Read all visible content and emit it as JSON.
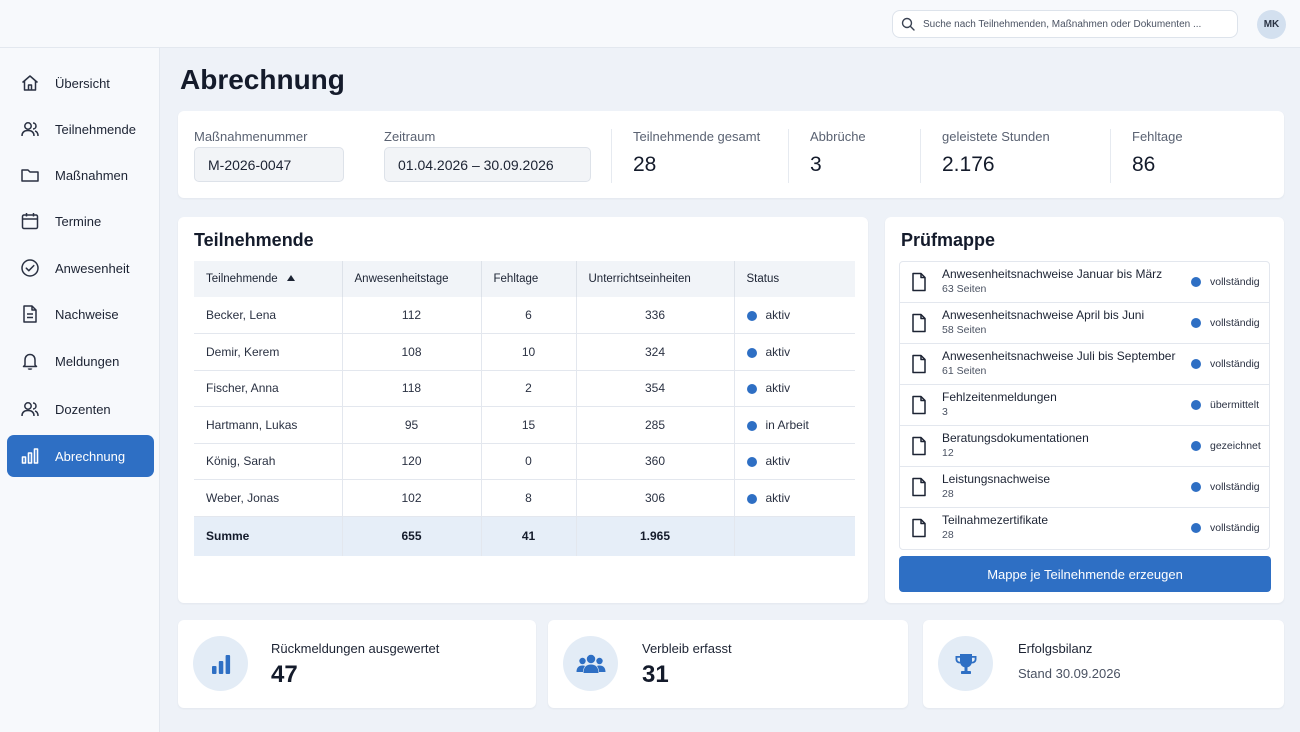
{
  "search": {
    "placeholder": "Suche nach Teilnehmenden, Maßnahmen oder Dokumenten ..."
  },
  "user": {
    "initials": "MK"
  },
  "sidebar": {
    "items": [
      {
        "label": "Übersicht",
        "icon": "home-icon"
      },
      {
        "label": "Teilnehmende",
        "icon": "users-icon"
      },
      {
        "label": "Maßnahmen",
        "icon": "folder-icon"
      },
      {
        "label": "Termine",
        "icon": "calendar-icon"
      },
      {
        "label": "Anwesenheit",
        "icon": "check-circle-icon"
      },
      {
        "label": "Nachweise",
        "icon": "document-icon"
      },
      {
        "label": "Meldungen",
        "icon": "bell-icon"
      },
      {
        "label": "Dozenten",
        "icon": "users-icon"
      },
      {
        "label": "Abrechnung",
        "icon": "bar-chart-icon",
        "active": true
      }
    ]
  },
  "page": {
    "title": "Abrechnung"
  },
  "info": {
    "massnahme_label": "Maßnahmenummer",
    "massnahme_value": "M-2026-0047",
    "zeitraum_label": "Zeitraum",
    "zeitraum_value": "01.04.2026 – 30.09.2026",
    "teilnehmende_label": "Teilnehmende gesamt",
    "teilnehmende_value": "28",
    "abbrueche_label": "Abbrüche",
    "abbrueche_value": "3",
    "stunden_label": "geleistete Stunden",
    "stunden_value": "2.176",
    "fehltage_label": "Fehltage",
    "fehltage_value": "86"
  },
  "teilnehmende": {
    "title": "Teilnehmende",
    "columns": [
      "Teilnehmende",
      "Anwesenheitstage",
      "Fehltage",
      "Unterrichtseinheiten",
      "Status"
    ],
    "rows": [
      {
        "name": "Becker, Lena",
        "anwesend": "112",
        "fehltage": "6",
        "ue": "336",
        "status": "aktiv"
      },
      {
        "name": "Demir, Kerem",
        "anwesend": "108",
        "fehltage": "10",
        "ue": "324",
        "status": "aktiv"
      },
      {
        "name": "Fischer, Anna",
        "anwesend": "118",
        "fehltage": "2",
        "ue": "354",
        "status": "aktiv"
      },
      {
        "name": "Hartmann, Lukas",
        "anwesend": "95",
        "fehltage": "15",
        "ue": "285",
        "status": "in Arbeit"
      },
      {
        "name": "König, Sarah",
        "anwesend": "120",
        "fehltage": "0",
        "ue": "360",
        "status": "aktiv"
      },
      {
        "name": "Weber, Jonas",
        "anwesend": "102",
        "fehltage": "8",
        "ue": "306",
        "status": "aktiv"
      }
    ],
    "sum": {
      "label": "Summe",
      "anwesend": "655",
      "fehltage": "41",
      "ue": "1.965"
    }
  },
  "pruefmappe": {
    "title": "Prüfmappe",
    "items": [
      {
        "title": "Anwesenheitsnachweise Januar bis März",
        "sub": "63 Seiten",
        "status": "vollständig"
      },
      {
        "title": "Anwesenheitsnachweise April bis Juni",
        "sub": "58 Seiten",
        "status": "vollständig"
      },
      {
        "title": "Anwesenheitsnachweise Juli bis September",
        "sub": "61 Seiten",
        "status": "vollständig"
      },
      {
        "title": "Fehlzeitenmeldungen",
        "sub": "3",
        "status": "übermittelt"
      },
      {
        "title": "Beratungsdokumentationen",
        "sub": "12",
        "status": "gezeichnet"
      },
      {
        "title": "Leistungsnachweise",
        "sub": "28",
        "status": "vollständig"
      },
      {
        "title": "Teilnahmezertifikate",
        "sub": "28",
        "status": "vollständig"
      }
    ],
    "button": "Mappe je Teilnehmende erzeugen"
  },
  "stats": [
    {
      "label": "Rückmeldungen ausgewertet",
      "value": "47",
      "icon": "bar-chart-icon"
    },
    {
      "label": "Verbleib erfasst",
      "value": "31",
      "icon": "group-icon"
    },
    {
      "label": "Erfolgsbilanz",
      "sub": "Stand 30.09.2026",
      "icon": "trophy-icon"
    }
  ],
  "colors": {
    "accent": "#2e6fc4",
    "background": "#eef2f8",
    "sum_row": "#e6eef8"
  }
}
